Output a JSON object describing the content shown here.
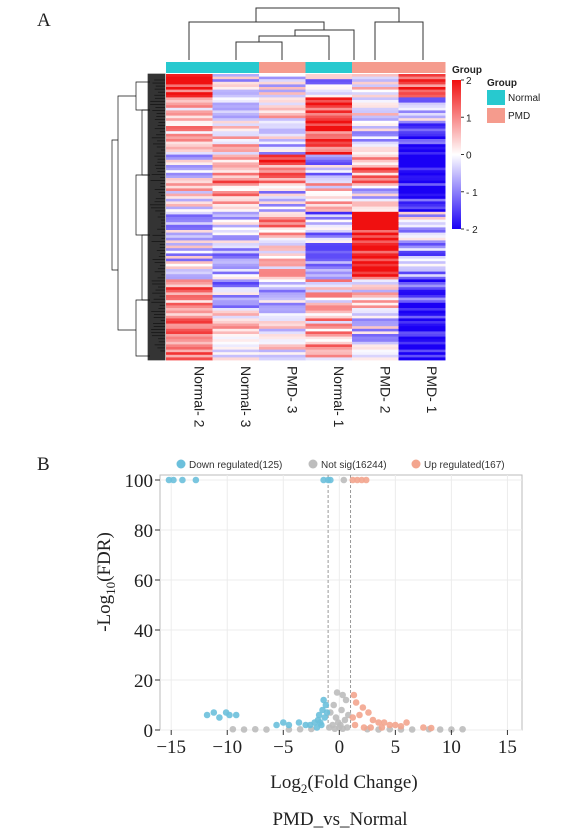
{
  "panels": {
    "a": "A",
    "b": "B"
  },
  "chart_data": [
    {
      "type": "heatmap",
      "columns": [
        "Normal- 2",
        "Normal- 3",
        "PMD- 3",
        "Normal- 1",
        "PMD- 2",
        "PMD- 1"
      ],
      "column_groups": [
        "Normal",
        "Normal",
        "PMD",
        "Normal",
        "PMD",
        "PMD"
      ],
      "legend": {
        "group_header": "Group",
        "group_title": "Group",
        "groups": [
          {
            "name": "Normal",
            "color": "#27c9cf"
          },
          {
            "name": "PMD",
            "color": "#f59b8d"
          }
        ]
      },
      "scale": {
        "min": -2,
        "max": 2,
        "ticks": [
          2,
          1,
          0,
          -1,
          -2
        ],
        "tick_labels": [
          "2",
          "1",
          "0",
          "- 1",
          "- 2"
        ],
        "colors": [
          "#1a00f5",
          "#ffffff",
          "#f01010"
        ]
      }
    },
    {
      "type": "scatter",
      "legend": [
        {
          "label": "Down regulated(125)",
          "color": "#6cc0dc"
        },
        {
          "label": "Not sig(16244)",
          "color": "#bdbdbd"
        },
        {
          "label": "Up regulated(167)",
          "color": "#f3a58e"
        }
      ],
      "xlabel_main": "Log",
      "xlabel_sub": "2",
      "xlabel_rest": "(Fold Change)",
      "ylabel_main": "-Log",
      "ylabel_sub": "10",
      "ylabel_rest": "(FDR)",
      "subtitle": "PMD_vs_Normal",
      "xlim": [
        -16,
        16.3
      ],
      "ylim": [
        0,
        102
      ],
      "xticks": [
        -15,
        -10,
        -5,
        0,
        5,
        10,
        15
      ],
      "yticks": [
        0,
        20,
        40,
        60,
        80,
        100
      ],
      "thresholds": {
        "log2fc": [
          -1,
          1
        ]
      },
      "grid": true,
      "series": [
        {
          "name": "Down regulated(125)",
          "points": [
            [
              -15.2,
              100
            ],
            [
              -14.8,
              100
            ],
            [
              -14.0,
              100
            ],
            [
              -12.8,
              100
            ],
            [
              -1.4,
              100
            ],
            [
              -1.0,
              100
            ],
            [
              -0.8,
              100
            ],
            [
              -11.8,
              6
            ],
            [
              -11.2,
              7
            ],
            [
              -10.7,
              5
            ],
            [
              -10.1,
              7
            ],
            [
              -9.8,
              6
            ],
            [
              -9.2,
              6
            ],
            [
              -5.6,
              2
            ],
            [
              -5.0,
              3
            ],
            [
              -4.5,
              2
            ],
            [
              -3.6,
              3
            ],
            [
              -3.0,
              2
            ],
            [
              -2.6,
              2
            ],
            [
              -2.2,
              3
            ],
            [
              -1.8,
              6
            ],
            [
              -1.5,
              8
            ],
            [
              -1.3,
              5
            ],
            [
              -1.2,
              10
            ],
            [
              -1.9,
              4
            ],
            [
              -1.6,
              2
            ],
            [
              -1.1,
              7
            ],
            [
              -1.4,
              12
            ],
            [
              -2.0,
              1
            ],
            [
              -1.7,
              3
            ]
          ]
        },
        {
          "name": "Not sig(16244)",
          "points": [
            [
              0.4,
              100
            ],
            [
              -0.2,
              15
            ],
            [
              0.3,
              14
            ],
            [
              0.6,
              12
            ],
            [
              -0.5,
              10
            ],
            [
              0.2,
              8
            ],
            [
              -0.8,
              7
            ],
            [
              0.8,
              6
            ],
            [
              -0.3,
              5
            ],
            [
              0.5,
              4
            ],
            [
              -0.1,
              3
            ],
            [
              0.1,
              2
            ],
            [
              -0.6,
              2
            ],
            [
              0.7,
              1
            ],
            [
              -0.9,
              1
            ],
            [
              0.0,
              1
            ],
            [
              -0.4,
              0.5
            ],
            [
              0.3,
              0.5
            ],
            [
              -9.5,
              0.3
            ],
            [
              -8.5,
              0.2
            ],
            [
              -7.5,
              0.3
            ],
            [
              -6.5,
              0.2
            ],
            [
              -4.5,
              0.2
            ],
            [
              -3.5,
              0.3
            ],
            [
              -2.5,
              0.4
            ],
            [
              2.5,
              0.3
            ],
            [
              3.5,
              0.2
            ],
            [
              4.5,
              0.3
            ],
            [
              5.5,
              0.2
            ],
            [
              6.5,
              0.2
            ],
            [
              8.0,
              0.3
            ],
            [
              9.0,
              0.2
            ],
            [
              10.0,
              0.2
            ],
            [
              11.0,
              0.3
            ]
          ]
        },
        {
          "name": "Up regulated(167)",
          "points": [
            [
              1.2,
              100
            ],
            [
              1.6,
              100
            ],
            [
              2.0,
              100
            ],
            [
              2.4,
              100
            ],
            [
              1.3,
              14
            ],
            [
              1.5,
              11
            ],
            [
              2.1,
              9
            ],
            [
              2.6,
              7
            ],
            [
              1.8,
              6
            ],
            [
              1.2,
              5
            ],
            [
              3.0,
              4
            ],
            [
              3.5,
              3
            ],
            [
              4.0,
              3
            ],
            [
              4.5,
              2
            ],
            [
              5.0,
              2
            ],
            [
              5.5,
              1.5
            ],
            [
              6.0,
              3
            ],
            [
              1.4,
              2
            ],
            [
              2.2,
              1
            ],
            [
              2.8,
              1
            ],
            [
              3.8,
              1
            ],
            [
              7.5,
              1
            ],
            [
              8.2,
              0.8
            ]
          ]
        }
      ]
    }
  ]
}
